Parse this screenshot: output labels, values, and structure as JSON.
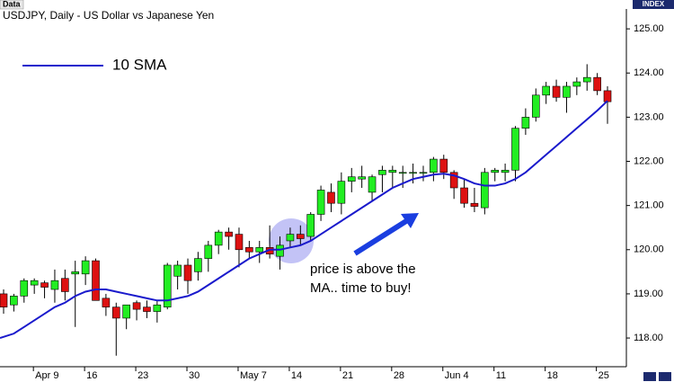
{
  "badge": "Data",
  "index_label": "INDEX",
  "chart_data": {
    "type": "candlestick",
    "title": "USDJPY, Daily - US Dollar vs Japanese Yen",
    "annotation": [
      "price is above the",
      "MA.. time to buy!"
    ],
    "categories": [
      null,
      null,
      null,
      "Apr 9",
      null,
      null,
      null,
      null,
      "16",
      null,
      null,
      null,
      null,
      "23",
      null,
      null,
      null,
      null,
      "30",
      null,
      null,
      null,
      null,
      "May 7",
      null,
      null,
      null,
      null,
      "14",
      null,
      null,
      null,
      null,
      "21",
      null,
      null,
      null,
      null,
      "28",
      null,
      null,
      null,
      null,
      "Jun 4",
      null,
      null,
      null,
      null,
      "11",
      null,
      null,
      null,
      null,
      "18",
      null,
      null,
      null,
      null,
      "25",
      null
    ],
    "open": [
      119.0,
      118.75,
      118.95,
      119.2,
      119.25,
      119.1,
      119.35,
      119.45,
      119.45,
      119.75,
      118.9,
      118.7,
      118.45,
      118.8,
      118.7,
      118.6,
      118.7,
      119.4,
      119.65,
      119.5,
      119.8,
      120.1,
      120.4,
      120.35,
      120.05,
      119.95,
      120.05,
      119.85,
      120.2,
      120.35,
      120.3,
      120.8,
      121.3,
      121.05,
      121.55,
      121.6,
      121.3,
      121.7,
      121.75,
      121.75,
      121.75,
      121.75,
      121.75,
      122.05,
      121.75,
      121.4,
      121.05,
      120.95,
      121.75,
      121.75,
      121.8,
      122.75,
      123.0,
      123.5,
      123.7,
      123.45,
      123.7,
      123.8,
      123.9,
      123.6
    ],
    "high": [
      119.1,
      119.0,
      119.35,
      119.35,
      119.3,
      119.55,
      119.55,
      119.75,
      119.85,
      119.8,
      119.0,
      118.8,
      118.75,
      118.85,
      118.85,
      118.85,
      119.7,
      119.75,
      119.8,
      119.95,
      120.2,
      120.45,
      120.5,
      120.5,
      120.2,
      120.2,
      120.55,
      120.3,
      120.5,
      120.55,
      120.85,
      121.45,
      121.5,
      121.75,
      121.85,
      121.9,
      121.7,
      121.9,
      121.9,
      121.9,
      121.95,
      121.9,
      122.1,
      122.15,
      121.8,
      121.6,
      121.4,
      121.85,
      121.85,
      121.95,
      122.8,
      123.2,
      123.65,
      123.8,
      123.85,
      123.8,
      123.9,
      124.2,
      124.0,
      123.7
    ],
    "low": [
      118.55,
      118.6,
      118.8,
      119.0,
      118.9,
      118.8,
      118.85,
      118.25,
      119.2,
      118.85,
      118.5,
      117.6,
      118.2,
      118.4,
      118.45,
      118.35,
      118.65,
      119.1,
      119.0,
      119.3,
      119.5,
      119.9,
      120.0,
      119.6,
      119.8,
      119.7,
      119.8,
      119.55,
      120.05,
      120.1,
      120.2,
      120.65,
      120.85,
      120.8,
      121.3,
      121.4,
      121.1,
      121.3,
      121.4,
      121.4,
      121.5,
      121.55,
      121.55,
      121.6,
      121.15,
      120.95,
      120.85,
      120.8,
      121.55,
      121.55,
      121.55,
      122.6,
      122.9,
      123.3,
      123.35,
      123.1,
      123.5,
      123.6,
      123.5,
      122.85
    ],
    "close": [
      118.7,
      118.95,
      119.3,
      119.3,
      119.15,
      119.3,
      119.05,
      119.5,
      119.75,
      118.85,
      118.7,
      118.45,
      118.75,
      118.65,
      118.6,
      118.75,
      119.65,
      119.65,
      119.3,
      119.8,
      120.1,
      120.4,
      120.3,
      120.0,
      119.95,
      120.05,
      119.9,
      120.1,
      120.35,
      120.25,
      120.8,
      121.35,
      121.05,
      121.55,
      121.65,
      121.65,
      121.65,
      121.8,
      121.8,
      121.75,
      121.75,
      121.75,
      122.05,
      121.75,
      121.4,
      121.05,
      120.98,
      121.75,
      121.8,
      121.8,
      122.75,
      123.0,
      123.5,
      123.7,
      123.45,
      123.7,
      123.8,
      123.9,
      123.6,
      123.35
    ],
    "up_color": "#22ee22",
    "down_color": "#dd1111",
    "series": [
      {
        "name": "10 SMA",
        "color": "#1a1acc",
        "values": [
          118.0,
          118.1,
          118.25,
          118.4,
          118.55,
          118.7,
          118.8,
          118.95,
          119.05,
          119.1,
          119.1,
          119.05,
          119.0,
          118.95,
          118.9,
          118.85,
          118.85,
          118.9,
          118.95,
          119.05,
          119.2,
          119.35,
          119.5,
          119.65,
          119.8,
          119.9,
          120.0,
          120.0,
          120.05,
          120.1,
          120.2,
          120.35,
          120.5,
          120.65,
          120.8,
          120.95,
          121.1,
          121.25,
          121.4,
          121.5,
          121.6,
          121.65,
          121.7,
          121.72,
          121.68,
          121.6,
          121.5,
          121.45,
          121.45,
          121.5,
          121.6,
          121.75,
          121.95,
          122.15,
          122.35,
          122.55,
          122.75,
          122.95,
          123.15,
          123.37
        ]
      }
    ],
    "ylim": [
      117.35,
      125.45
    ],
    "yticks": [
      {
        "value": 118,
        "label": "118.00"
      },
      {
        "value": 119,
        "label": "119.00"
      },
      {
        "value": 120,
        "label": "120.00"
      },
      {
        "value": 121,
        "label": "121.00"
      },
      {
        "value": 122,
        "label": "122.00"
      },
      {
        "value": 123,
        "label": "123.00"
      },
      {
        "value": 124,
        "label": "124.00"
      },
      {
        "value": 125,
        "label": "125.00"
      }
    ],
    "y_axis_side": "right",
    "grid": false
  }
}
